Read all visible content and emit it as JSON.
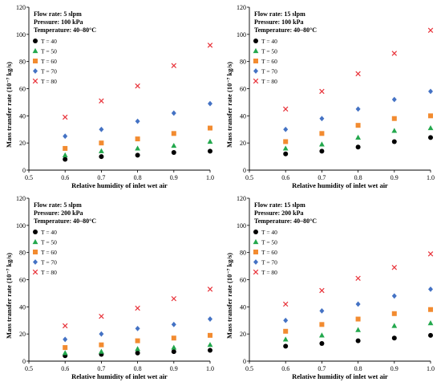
{
  "chart_data": [
    {
      "type": "scatter",
      "conditions": [
        "Flow rate: 5 slpm",
        "Pressure: 100 kPa",
        "Temperature: 40–80°C"
      ],
      "xlabel": "Relative humidity of inlet wet air",
      "ylabel": "Mass transfer rate (10⁻⁷ kg/s)",
      "xlim": [
        0.5,
        1.0
      ],
      "ylim": [
        0,
        120
      ],
      "x_ticks": [
        "0.5",
        "0.6",
        "0.7",
        "0.8",
        "0.9",
        "1.0"
      ],
      "y_ticks": [
        "0",
        "20",
        "40",
        "60",
        "80",
        "100",
        "120"
      ],
      "legend_position": "top-left",
      "x": [
        0.6,
        0.7,
        0.8,
        0.9,
        1.0
      ],
      "series": [
        {
          "name": "T = 40",
          "marker": "circle",
          "color": "#000000",
          "values": [
            8,
            10,
            11,
            13,
            14
          ]
        },
        {
          "name": "T = 50",
          "marker": "triangle",
          "color": "#23a84d",
          "values": [
            11,
            14,
            16,
            18,
            21
          ]
        },
        {
          "name": "T = 60",
          "marker": "square",
          "color": "#f28b30",
          "values": [
            16,
            20,
            23,
            27,
            31
          ]
        },
        {
          "name": "T = 70",
          "marker": "diamond",
          "color": "#4472c4",
          "values": [
            25,
            30,
            36,
            42,
            49
          ]
        },
        {
          "name": "T = 80",
          "marker": "x",
          "color": "#e8333a",
          "values": [
            39,
            51,
            62,
            77,
            92
          ]
        }
      ]
    },
    {
      "type": "scatter",
      "conditions": [
        "Flow rate: 15 slpm",
        "Pressure: 100 kPa",
        "Temperature: 40–80°C"
      ],
      "xlabel": "Relative humidity of inlet wet air",
      "ylabel": "Mass transfer rate (10⁻⁷ kg/s)",
      "xlim": [
        0.5,
        1.0
      ],
      "ylim": [
        0,
        120
      ],
      "x_ticks": [
        "0.5",
        "0.6",
        "0.7",
        "0.8",
        "0.9",
        "1.0"
      ],
      "y_ticks": [
        "0",
        "20",
        "40",
        "60",
        "80",
        "100",
        "120"
      ],
      "legend_position": "top-left",
      "x": [
        0.6,
        0.7,
        0.8,
        0.9,
        1.0
      ],
      "series": [
        {
          "name": "T = 40",
          "marker": "circle",
          "color": "#000000",
          "values": [
            12,
            14,
            17,
            21,
            24
          ]
        },
        {
          "name": "T = 50",
          "marker": "triangle",
          "color": "#23a84d",
          "values": [
            16,
            19,
            24,
            29,
            31
          ]
        },
        {
          "name": "T = 60",
          "marker": "square",
          "color": "#f28b30",
          "values": [
            21,
            27,
            33,
            38,
            40
          ]
        },
        {
          "name": "T = 70",
          "marker": "diamond",
          "color": "#4472c4",
          "values": [
            30,
            38,
            45,
            52,
            58
          ]
        },
        {
          "name": "T = 80",
          "marker": "x",
          "color": "#e8333a",
          "values": [
            45,
            58,
            71,
            86,
            103
          ]
        }
      ]
    },
    {
      "type": "scatter",
      "conditions": [
        "Flow rate: 5 slpm",
        "Pressure: 200 kPa",
        "Temperature: 40–80°C"
      ],
      "xlabel": "Relative humidity of inlet wet air",
      "ylabel": "Mass transfer rate (10⁻⁷ kg/s)",
      "xlim": [
        0.5,
        1.0
      ],
      "ylim": [
        0,
        120
      ],
      "x_ticks": [
        "0.5",
        "0.6",
        "0.7",
        "0.8",
        "0.9",
        "1.0"
      ],
      "y_ticks": [
        "0",
        "20",
        "40",
        "60",
        "80",
        "100",
        "120"
      ],
      "legend_position": "top-left",
      "x": [
        0.6,
        0.7,
        0.8,
        0.9,
        1.0
      ],
      "series": [
        {
          "name": "T = 40",
          "marker": "circle",
          "color": "#000000",
          "values": [
            4,
            5,
            6,
            7,
            8
          ]
        },
        {
          "name": "T = 50",
          "marker": "triangle",
          "color": "#23a84d",
          "values": [
            6,
            7,
            9,
            10,
            12
          ]
        },
        {
          "name": "T = 60",
          "marker": "square",
          "color": "#f28b30",
          "values": [
            10,
            12,
            15,
            17,
            19
          ]
        },
        {
          "name": "T = 70",
          "marker": "diamond",
          "color": "#4472c4",
          "values": [
            16,
            20,
            24,
            27,
            31
          ]
        },
        {
          "name": "T = 80",
          "marker": "x",
          "color": "#e8333a",
          "values": [
            26,
            33,
            39,
            46,
            53
          ]
        }
      ]
    },
    {
      "type": "scatter",
      "conditions": [
        "Flow rate: 15 slpm",
        "Pressure: 200 kPa",
        "Temperature: 40–80°C"
      ],
      "xlabel": "Relative humidity of inlet wet air",
      "ylabel": "Mass transfer rate (10⁻⁷ kg/s)",
      "xlim": [
        0.5,
        1.0
      ],
      "ylim": [
        0,
        120
      ],
      "x_ticks": [
        "0.5",
        "0.6",
        "0.7",
        "0.8",
        "0.9",
        "1.0"
      ],
      "y_ticks": [
        "0",
        "20",
        "40",
        "60",
        "80",
        "100",
        "120"
      ],
      "legend_position": "top-left",
      "x": [
        0.6,
        0.7,
        0.8,
        0.9,
        1.0
      ],
      "series": [
        {
          "name": "T = 40",
          "marker": "circle",
          "color": "#000000",
          "values": [
            11,
            13,
            15,
            17,
            19
          ]
        },
        {
          "name": "T = 50",
          "marker": "triangle",
          "color": "#23a84d",
          "values": [
            16,
            19,
            23,
            26,
            28
          ]
        },
        {
          "name": "T = 60",
          "marker": "square",
          "color": "#f28b30",
          "values": [
            22,
            27,
            31,
            35,
            38
          ]
        },
        {
          "name": "T = 70",
          "marker": "diamond",
          "color": "#4472c4",
          "values": [
            30,
            37,
            42,
            48,
            53
          ]
        },
        {
          "name": "T = 80",
          "marker": "x",
          "color": "#e8333a",
          "values": [
            42,
            52,
            61,
            69,
            79
          ]
        }
      ]
    }
  ]
}
